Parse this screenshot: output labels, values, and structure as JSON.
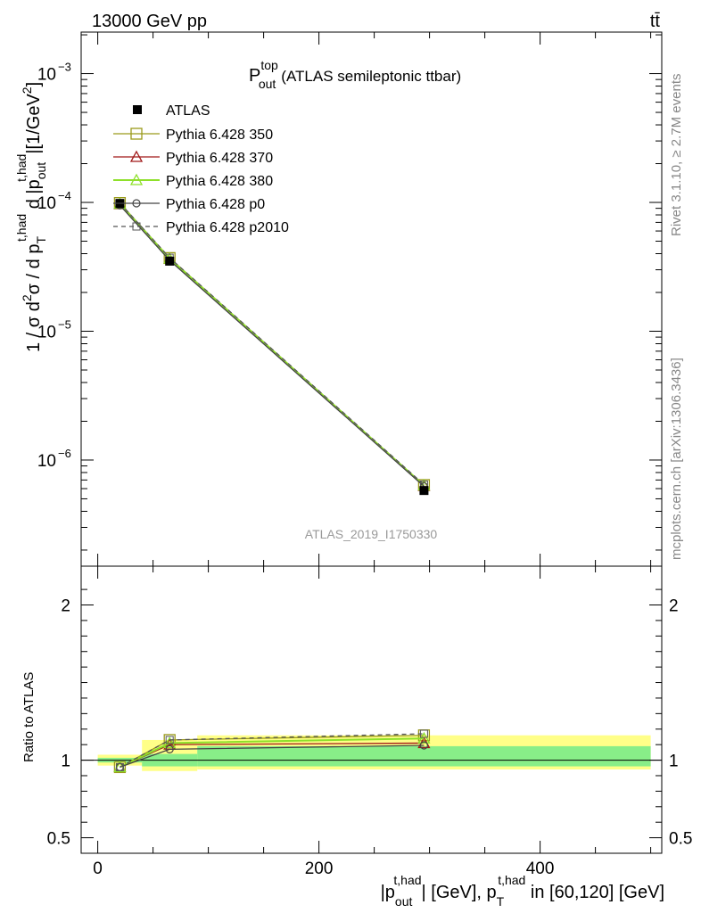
{
  "header": {
    "beam": "13000 GeV pp",
    "process": "tt̄"
  },
  "side_text": {
    "rivet": "Rivet 3.1.10, ≥ 2.7M events",
    "source": "mcplots.cern.ch [arXiv:1306.3436]"
  },
  "chart_data": [
    {
      "panel": "main",
      "type": "line",
      "title": "P_out^top (ATLAS semileptonic ttbar)",
      "title_parts": {
        "main": "P",
        "sup": "top",
        "sub": "out",
        "rest": "(ATLAS semileptonic ttbar)"
      },
      "ylabel_parts": {
        "a": "1 / σ d",
        "a_sup": "2",
        "b": "σ / d p",
        "b_sub": "T",
        "b_sup": "t,had",
        "c": " d |p",
        "c_sub": "out",
        "c_sup": "t,had",
        "d": "|[1/GeV",
        "d_sup": "2",
        "e": "]"
      },
      "yscale": "log",
      "ylim": [
        1.5e-07,
        0.0021
      ],
      "xlim": [
        -15,
        510
      ],
      "yticks": [
        {
          "value": 1e-06,
          "base": "10",
          "exp": "−6"
        },
        {
          "value": 1e-05,
          "base": "10",
          "exp": "−5"
        },
        {
          "value": 0.0001,
          "base": "10",
          "exp": "−4"
        },
        {
          "value": 0.001,
          "base": "10",
          "exp": "−3"
        }
      ],
      "watermark": "ATLAS_2019_I1750330",
      "legend_position": "top-left",
      "x": [
        20,
        65,
        295
      ],
      "data": {
        "name": "ATLAS",
        "values": [
          9.8e-05,
          3.5e-05,
          5.8e-07
        ],
        "bins": [
          [
            0,
            40
          ],
          [
            40,
            90
          ],
          [
            90,
            500
          ]
        ]
      },
      "series": [
        {
          "name": "Pythia 6.428 350",
          "color": "#9a9a1a",
          "marker": "square",
          "values": [
            9.9e-05,
            3.7e-05,
            6.4e-07
          ]
        },
        {
          "name": "Pythia 6.428 370",
          "color": "#a01818",
          "marker": "triangle",
          "values": [
            9.7e-05,
            3.65e-05,
            6.3e-07
          ]
        },
        {
          "name": "Pythia 6.428 380",
          "color": "#8ee02a",
          "marker": "triangle",
          "values": [
            9.75e-05,
            3.66e-05,
            6.35e-07
          ]
        },
        {
          "name": "Pythia 6.428 p0",
          "color": "#444444",
          "marker": "circle",
          "values": [
            9.5e-05,
            3.55e-05,
            6.25e-07
          ]
        },
        {
          "name": "Pythia 6.428 p2010",
          "color": "#555555",
          "marker": "square-small",
          "dashed": true,
          "values": [
            9.9e-05,
            3.72e-05,
            6.45e-07
          ]
        }
      ]
    },
    {
      "panel": "ratio",
      "type": "line",
      "ylabel": "Ratio to ATLAS",
      "ylim": [
        0.4,
        2.25
      ],
      "yticks": [
        0.5,
        1,
        2
      ],
      "xlim": [
        -15,
        510
      ],
      "xticks": [
        0,
        200,
        400
      ],
      "xlabel_parts": {
        "a": "|p",
        "a_sub": "out",
        "a_sup": "t,had",
        "b": "| [GeV], p",
        "b_sub": "T",
        "b_sup": "t,had",
        "c": " in [60,120] [GeV]"
      },
      "x": [
        20,
        65,
        295
      ],
      "bands": [
        {
          "x": [
            0,
            40
          ],
          "stat": [
            0.985,
            1.015
          ],
          "total": [
            0.965,
            1.035
          ]
        },
        {
          "x": [
            40,
            90
          ],
          "stat": [
            0.96,
            1.04
          ],
          "total": [
            0.93,
            1.13
          ]
        },
        {
          "x": [
            90,
            500
          ],
          "stat": [
            0.96,
            1.09
          ],
          "total": [
            0.94,
            1.16
          ]
        }
      ],
      "series": [
        {
          "name": "Pythia 6.428 350",
          "values": [
            0.955,
            1.13,
            1.16
          ]
        },
        {
          "name": "Pythia 6.428 370",
          "values": [
            0.955,
            1.1,
            1.11
          ]
        },
        {
          "name": "Pythia 6.428 380",
          "values": [
            0.955,
            1.11,
            1.14
          ]
        },
        {
          "name": "Pythia 6.428 p0",
          "values": [
            0.955,
            1.07,
            1.095
          ]
        },
        {
          "name": "Pythia 6.428 p2010",
          "values": [
            0.955,
            1.13,
            1.17
          ]
        }
      ]
    }
  ]
}
